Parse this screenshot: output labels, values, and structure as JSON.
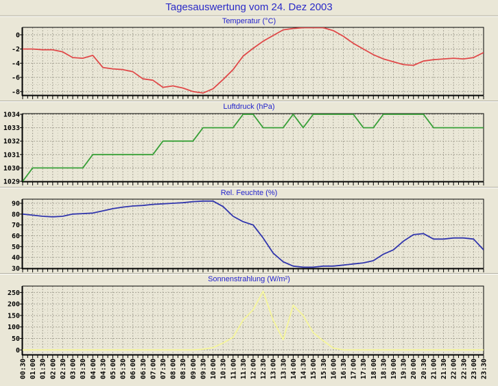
{
  "page": {
    "title": "Tagesauswertung vom 24. Dez 2003"
  },
  "colors": {
    "background": "#eae7d7",
    "title_blue": "#2222cc",
    "axis": "#000000",
    "grid_major": "#a5a294",
    "grid_minor": "#bfbcab",
    "divider_dark": "#b0ad9e",
    "divider_light": "#ffffff",
    "temperature_line": "#e04848",
    "pressure_line": "#37a037",
    "humidity_line": "#3035ad",
    "solar_line": "#f6f69a"
  },
  "times": [
    "00:30",
    "01:00",
    "01:30",
    "02:00",
    "02:30",
    "03:00",
    "03:30",
    "04:00",
    "04:30",
    "05:00",
    "05:30",
    "06:00",
    "06:30",
    "07:00",
    "07:30",
    "08:00",
    "08:30",
    "09:00",
    "09:30",
    "10:00",
    "10:30",
    "11:00",
    "11:30",
    "12:00",
    "12:30",
    "13:00",
    "13:30",
    "14:00",
    "14:30",
    "15:00",
    "15:30",
    "16:00",
    "16:30",
    "17:00",
    "17:30",
    "18:00",
    "18:30",
    "19:00",
    "19:30",
    "20:00",
    "20:30",
    "21:00",
    "21:30",
    "22:00",
    "22:30",
    "23:00",
    "23:30"
  ],
  "chart_data": [
    {
      "type": "line",
      "title": "Temperatur (°C)",
      "ylabel": "°C",
      "color_key": "temperature_line",
      "y_ticks": [
        0,
        -2,
        -4,
        -6,
        -8
      ],
      "y_minor_step": 1,
      "ylim": [
        1.05,
        -8.5
      ],
      "values": [
        -2.0,
        -2.0,
        -2.1,
        -2.1,
        -2.4,
        -3.2,
        -3.3,
        -2.9,
        -4.6,
        -4.8,
        -4.9,
        -5.2,
        -6.2,
        -6.4,
        -7.4,
        -7.2,
        -7.5,
        -8.0,
        -8.2,
        -7.6,
        -6.3,
        -4.9,
        -3.0,
        -1.9,
        -0.9,
        -0.1,
        0.7,
        0.9,
        1.0,
        1.0,
        1.0,
        0.6,
        -0.2,
        -1.2,
        -2.0,
        -2.8,
        -3.4,
        -3.8,
        -4.2,
        -4.3,
        -3.7,
        -3.5,
        -3.4,
        -3.3,
        -3.4,
        -3.2,
        -2.5
      ]
    },
    {
      "type": "line",
      "title": "Luftdruck (hPa)",
      "ylabel": "hPa",
      "color_key": "pressure_line",
      "y_ticks": [
        1034,
        1033,
        1032,
        1031,
        1030,
        1029
      ],
      "y_minor_step": null,
      "ylim": [
        1034.05,
        1029
      ],
      "values": [
        1029,
        1030,
        1030,
        1030,
        1030,
        1030,
        1030,
        1031,
        1031,
        1031,
        1031,
        1031,
        1031,
        1031,
        1032,
        1032,
        1032,
        1032,
        1033,
        1033,
        1033,
        1033,
        1034,
        1034,
        1033,
        1033,
        1033,
        1034,
        1033,
        1034,
        1034,
        1034,
        1034,
        1034,
        1033,
        1033,
        1034,
        1034,
        1034,
        1034,
        1034,
        1033,
        1033,
        1033,
        1033,
        1033,
        1033
      ]
    },
    {
      "type": "line",
      "title": "Rel. Feuchte (%)",
      "ylabel": "%",
      "color_key": "humidity_line",
      "y_ticks": [
        90,
        80,
        70,
        60,
        50,
        40,
        30
      ],
      "y_minor_step": 5,
      "ylim": [
        93.8,
        30
      ],
      "values": [
        80,
        79,
        78,
        77.5,
        78,
        80,
        80.5,
        81,
        83,
        85,
        86.5,
        87.5,
        88,
        89,
        89.5,
        90,
        90.5,
        91.5,
        92,
        92,
        87,
        78,
        73,
        70,
        58,
        44,
        36,
        32,
        31,
        31,
        32,
        32,
        33,
        34,
        35,
        37,
        43,
        47,
        55,
        61,
        62,
        57,
        57,
        58,
        58,
        57,
        47
      ]
    },
    {
      "type": "line",
      "title": "Sonnenstrahlung (W/m²)",
      "ylabel": "W/m²",
      "color_key": "solar_line",
      "y_ticks": [
        250,
        200,
        150,
        100,
        50,
        0
      ],
      "y_minor_step": 25,
      "ylim": [
        278,
        -20
      ],
      "values": [
        0,
        0,
        0,
        0,
        0,
        0,
        0,
        0,
        0,
        0,
        0,
        0,
        0,
        0,
        0,
        0,
        0,
        0,
        3,
        10,
        30,
        55,
        130,
        175,
        255,
        130,
        45,
        195,
        150,
        75,
        40,
        8,
        0,
        0,
        0,
        0,
        0,
        0,
        0,
        0,
        0,
        0,
        0,
        0,
        0,
        0,
        0
      ]
    }
  ]
}
